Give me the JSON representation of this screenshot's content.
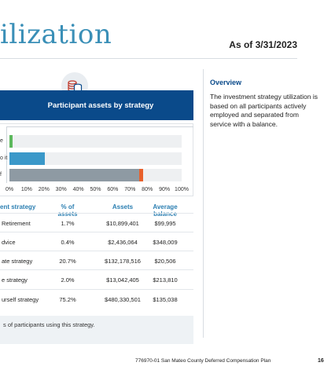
{
  "header": {
    "title": "ilization",
    "as_of": "As of 3/31/2023"
  },
  "banner": {
    "title": "Participant assets by strategy",
    "icon": "coins-stack-icon"
  },
  "chart_data": {
    "type": "bar",
    "orientation": "horizontal",
    "categories": [
      "e",
      "o it",
      "f"
    ],
    "values": [
      1.7,
      20.7,
      77.6
    ],
    "stacked_segments": [
      {
        "category": "e",
        "segments": [
          {
            "value": 1.7,
            "color": "#5cb85c"
          }
        ]
      },
      {
        "category": "o it",
        "segments": [
          {
            "value": 20.7,
            "color": "#3a98c9"
          }
        ]
      },
      {
        "category": "f",
        "segments": [
          {
            "value": 75.2,
            "color": "#8e9aa3"
          },
          {
            "value": 2.4,
            "color": "#e8612c"
          }
        ]
      }
    ],
    "xlim": [
      0,
      100
    ],
    "xticks": [
      "0%",
      "10%",
      "20%",
      "30%",
      "40%",
      "50%",
      "60%",
      "70%",
      "80%",
      "90%",
      "100%"
    ],
    "grid": false
  },
  "table": {
    "headers": [
      "ent strategy",
      "% of assets",
      "Assets",
      "Average balance"
    ],
    "rows": [
      [
        "Retirement",
        "1.7%",
        "$10,899,401",
        "$99,995"
      ],
      [
        "dvice",
        "0.4%",
        "$2,436,064",
        "$348,009"
      ],
      [
        "ate strategy",
        "20.7%",
        "$132,178,516",
        "$20,506"
      ],
      [
        "e strategy",
        "2.0%",
        "$13,042,405",
        "$213,810"
      ],
      [
        "urself strategy",
        "75.2%",
        "$480,330,501",
        "$135,038"
      ]
    ]
  },
  "footnote": "s of participants using this strategy.",
  "overview": {
    "title": "Overview",
    "text": "The investment strategy utilization is based on all participants actively employed and separated from service with a balance."
  },
  "footer": {
    "text": "776970-01 San Mateo County Deferred Compensation Plan",
    "page": "16"
  }
}
